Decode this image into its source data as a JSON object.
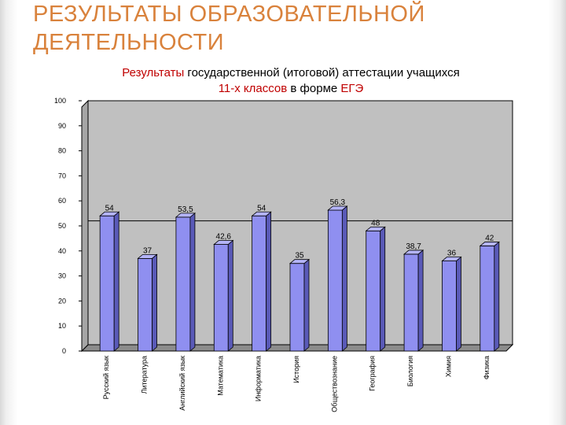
{
  "slide": {
    "title_line1": "РЕЗУЛЬТАТЫ ОБРАЗОВАТЕЛЬНОЙ",
    "title_line2": "ДЕЯТЕЛЬНОСТИ",
    "title_color": "#d9823c"
  },
  "chart_data": {
    "type": "bar",
    "title_parts": {
      "line1_a": "Результаты",
      "line1_b": " государственной (итоговой) аттестации учащихся",
      "line2_a": "11-х классов",
      "line2_b": " в форме ",
      "line2_c": "ЕГЭ"
    },
    "categories": [
      "Русский язык",
      "Литература",
      "Английский язык",
      "Математика",
      "Информатика",
      "История",
      "Обществознание",
      "География",
      "Биология",
      "Химия",
      "Физика"
    ],
    "values": [
      54,
      37,
      53.5,
      42.6,
      54,
      35,
      56.3,
      48,
      38.7,
      36,
      42
    ],
    "value_labels": [
      "54",
      "37",
      "53,5",
      "42,6",
      "54",
      "35",
      "56,3",
      "48",
      "38,7",
      "36",
      "42"
    ],
    "ylim": [
      0,
      100
    ],
    "yticks": [
      0,
      10,
      20,
      30,
      40,
      50,
      60,
      70,
      80,
      90,
      100
    ],
    "reference_line": 52,
    "bar_color": "#8f8ff0",
    "plot_background": "#c0c0c0",
    "legend": "none"
  }
}
